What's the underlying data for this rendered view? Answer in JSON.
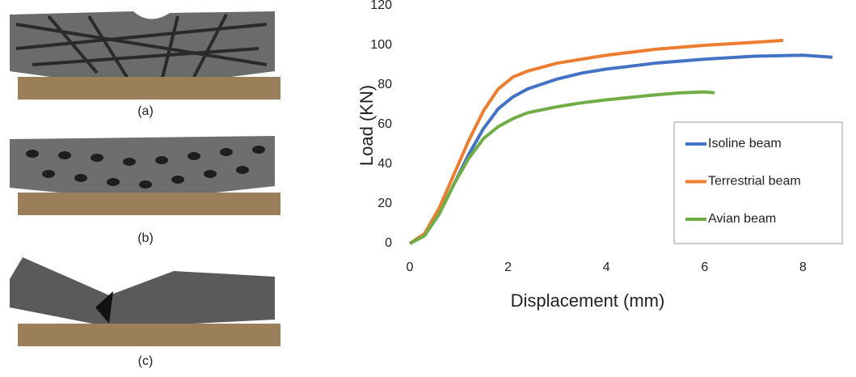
{
  "panels": [
    {
      "label": "(a)"
    },
    {
      "label": "(b)"
    },
    {
      "label": "(c)"
    }
  ],
  "chart_data": {
    "type": "line",
    "xlabel": "Displacement (mm)",
    "ylabel": "Load (KN)",
    "xlim": [
      0,
      8.8
    ],
    "xticks": [
      0,
      2,
      4,
      6,
      8
    ],
    "ylim": [
      0,
      120
    ],
    "yticks": [
      0,
      20,
      40,
      60,
      80,
      100,
      120
    ],
    "grid": false,
    "legend": "lower right",
    "series": [
      {
        "name": "Isoline beam",
        "color": "#4472c4",
        "x": [
          0,
          0.3,
          0.6,
          0.9,
          1.2,
          1.5,
          1.8,
          2.1,
          2.4,
          3,
          3.5,
          4,
          5,
          6,
          7,
          8,
          8.6
        ],
        "values": [
          0,
          4,
          15,
          30,
          45,
          58,
          68,
          74,
          78,
          83,
          86,
          88,
          91,
          93,
          94.5,
          95,
          94
        ]
      },
      {
        "name": "Terrestrial beam",
        "color": "#ed7d31",
        "x": [
          0,
          0.3,
          0.6,
          0.9,
          1.2,
          1.5,
          1.8,
          2.1,
          2.4,
          3,
          3.5,
          4,
          5,
          6,
          7,
          7.6
        ],
        "values": [
          0,
          5,
          18,
          35,
          52,
          67,
          78,
          84,
          87,
          91,
          93,
          95,
          98,
          100,
          101.5,
          102.5
        ]
      },
      {
        "name": "Avian beam",
        "color": "#70ad47",
        "x": [
          0,
          0.3,
          0.6,
          0.9,
          1.2,
          1.5,
          1.8,
          2.1,
          2.4,
          3,
          3.5,
          4,
          5,
          5.5,
          6,
          6.2
        ],
        "values": [
          0,
          4,
          15,
          30,
          43,
          53,
          59,
          63,
          66,
          69,
          71,
          72.5,
          75,
          76,
          76.5,
          76
        ]
      }
    ]
  }
}
